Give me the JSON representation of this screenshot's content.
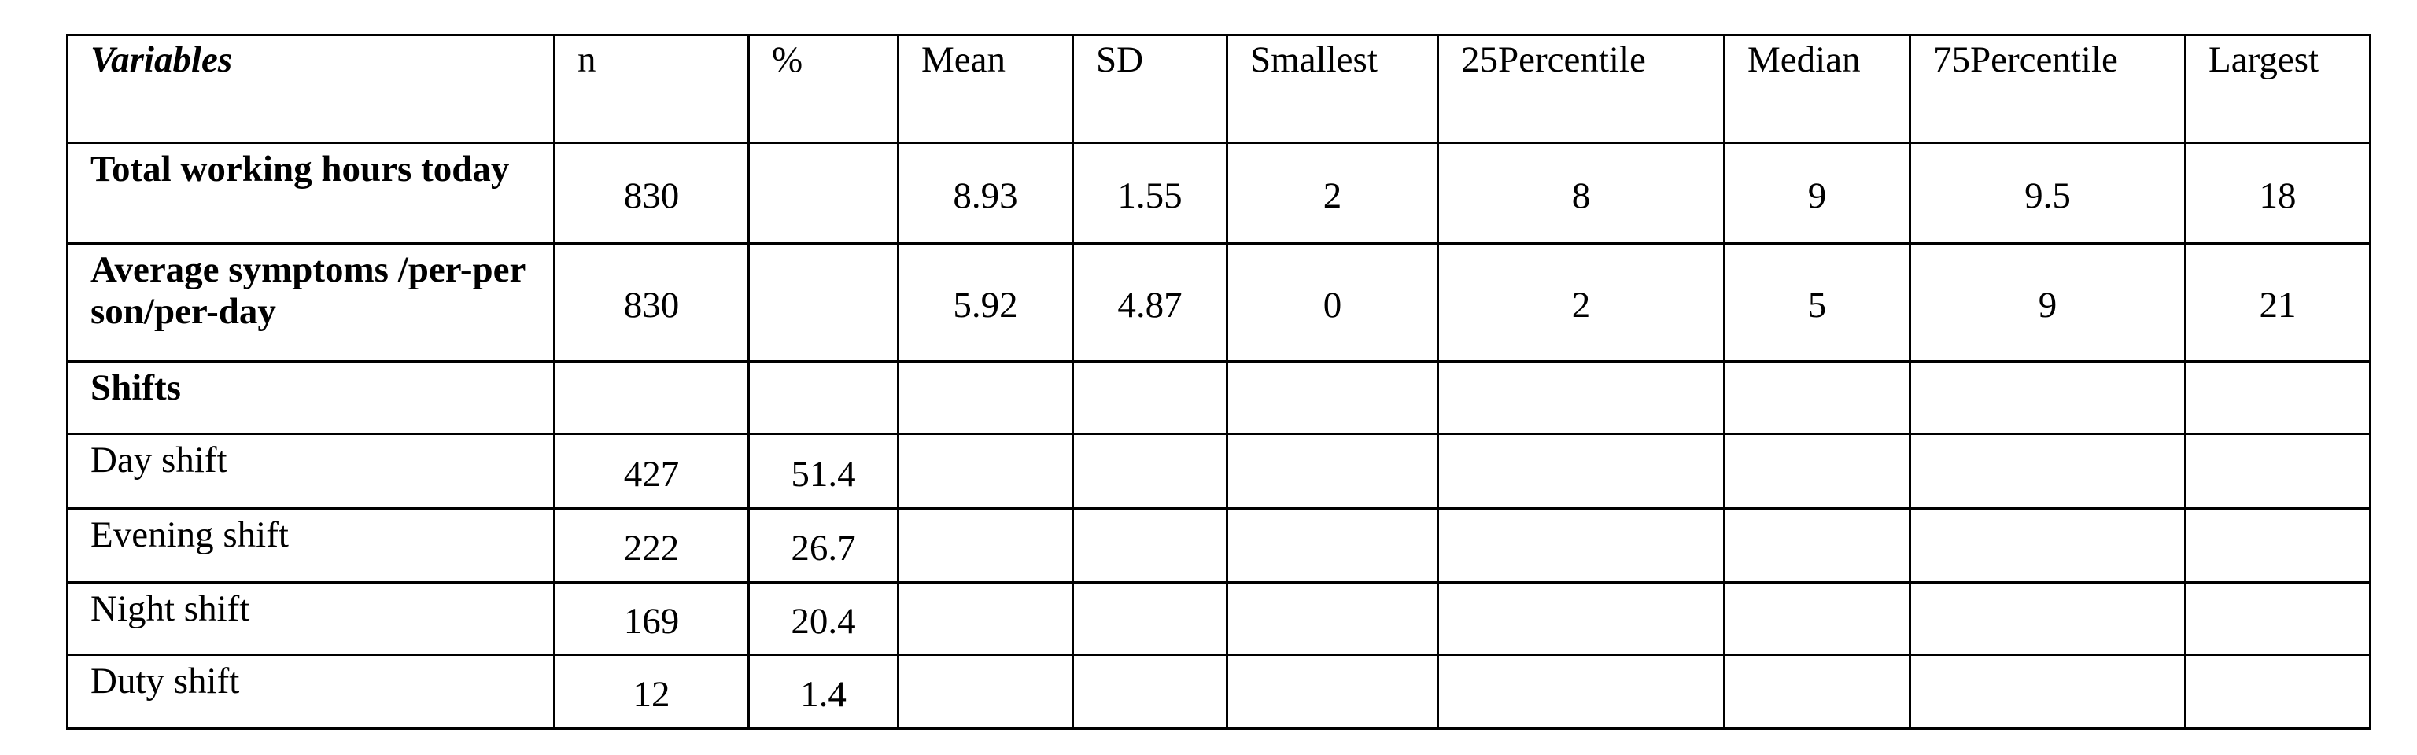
{
  "table": {
    "header": [
      "Variables",
      "n",
      "%",
      "Mean",
      "SD",
      "Smallest",
      "25Percentile",
      "Median",
      "75Percentile",
      "Largest"
    ],
    "rows": [
      [
        "Total working hours today",
        830,
        null,
        8.93,
        1.55,
        2,
        8,
        9,
        9.5,
        18
      ],
      [
        "Average symptoms /per-person/per-day",
        830,
        null,
        5.92,
        4.87,
        0,
        2,
        5,
        9,
        21
      ],
      [
        "Shifts",
        null,
        null,
        null,
        null,
        null,
        null,
        null,
        null,
        null
      ],
      [
        "Day shift",
        427,
        51.4,
        null,
        null,
        null,
        null,
        null,
        null,
        null
      ],
      [
        "Evening shift",
        222,
        26.7,
        null,
        null,
        null,
        null,
        null,
        null,
        null
      ],
      [
        "Night shift",
        169,
        20.4,
        null,
        null,
        null,
        null,
        null,
        null,
        null
      ],
      [
        "Duty shift",
        12,
        1.4,
        null,
        null,
        null,
        null,
        null,
        null,
        null
      ]
    ]
  }
}
